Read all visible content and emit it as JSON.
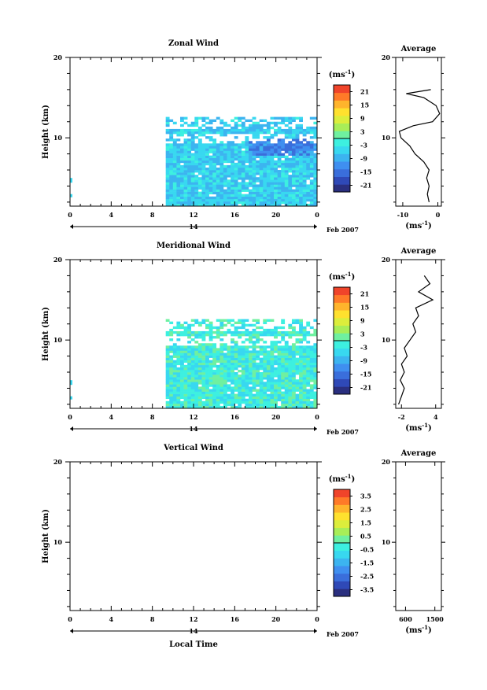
{
  "chart_data": [
    {
      "type": "heatmap",
      "title": "Zonal Wind",
      "ylabel": "Height (km)",
      "ylim": [
        1.5,
        20
      ],
      "y_ticks": [
        "20",
        "10"
      ],
      "x_ticks": [
        "0",
        "4",
        "8",
        "12",
        "16",
        "20",
        "0"
      ],
      "xlim": [
        0,
        24
      ],
      "date_label": "14",
      "date_suffix": "Feb 2007",
      "colorbar": {
        "unit": "(ms⁻¹)",
        "ticks": [
          "21",
          "15",
          "9",
          "3",
          "-3",
          "-9",
          "-15",
          "-21"
        ],
        "range": [
          -24,
          24
        ]
      },
      "data_region": {
        "time_start": 9.3,
        "time_end": 24,
        "height_bottom": 1.5,
        "height_top": 12.5,
        "typical_value": -6,
        "range": [
          -18,
          3
        ]
      },
      "average_panel": {
        "title": "Average",
        "xlabel": "(ms⁻¹)",
        "x_ticks": [
          "-10",
          "0"
        ],
        "xlim": [
          -12,
          1
        ],
        "y_ticks": [
          "20",
          "10"
        ],
        "profile": [
          {
            "h": 2.0,
            "v": -2.5
          },
          {
            "h": 3.0,
            "v": -3.0
          },
          {
            "h": 4.0,
            "v": -2.5
          },
          {
            "h": 5.0,
            "v": -3.2
          },
          {
            "h": 6.0,
            "v": -2.5
          },
          {
            "h": 7.0,
            "v": -4.0
          },
          {
            "h": 8.0,
            "v": -6.5
          },
          {
            "h": 9.0,
            "v": -8.0
          },
          {
            "h": 10.0,
            "v": -10.5
          },
          {
            "h": 10.8,
            "v": -11.0
          },
          {
            "h": 11.5,
            "v": -7.0
          },
          {
            "h": 12.0,
            "v": -1.5
          },
          {
            "h": 13.0,
            "v": 0.5
          },
          {
            "h": 14.0,
            "v": -0.5
          },
          {
            "h": 15.0,
            "v": -4.0
          },
          {
            "h": 15.5,
            "v": -9.0
          },
          {
            "h": 16.0,
            "v": -2.0
          }
        ]
      }
    },
    {
      "type": "heatmap",
      "title": "Meridional Wind",
      "ylabel": "Height (km)",
      "ylim": [
        1.5,
        20
      ],
      "y_ticks": [
        "20",
        "10"
      ],
      "x_ticks": [
        "0",
        "4",
        "8",
        "12",
        "16",
        "20",
        "0"
      ],
      "xlim": [
        0,
        24
      ],
      "date_label": "14",
      "date_suffix": "Feb 2007",
      "colorbar": {
        "unit": "(ms⁻¹)",
        "ticks": [
          "21",
          "15",
          "9",
          "3",
          "-3",
          "-9",
          "-15",
          "-21"
        ],
        "range": [
          -24,
          24
        ]
      },
      "data_region": {
        "time_start": 9.3,
        "time_end": 24,
        "height_bottom": 1.5,
        "height_top": 12.5,
        "typical_value": -2,
        "range": [
          -10,
          3
        ]
      },
      "average_panel": {
        "title": "Average",
        "xlabel": "(ms⁻¹)",
        "x_ticks": [
          "-2",
          "4"
        ],
        "xlim": [
          -3,
          5
        ],
        "y_ticks": [
          "20",
          "10"
        ],
        "profile": [
          {
            "h": 2.0,
            "v": -2.5
          },
          {
            "h": 3.0,
            "v": -2.0
          },
          {
            "h": 4.0,
            "v": -1.5
          },
          {
            "h": 5.0,
            "v": -2.2
          },
          {
            "h": 6.0,
            "v": -1.5
          },
          {
            "h": 7.0,
            "v": -2.0
          },
          {
            "h": 8.0,
            "v": -1.0
          },
          {
            "h": 9.0,
            "v": -1.5
          },
          {
            "h": 10.0,
            "v": -0.5
          },
          {
            "h": 11.0,
            "v": 0.5
          },
          {
            "h": 12.0,
            "v": 0.0
          },
          {
            "h": 13.0,
            "v": 1.0
          },
          {
            "h": 14.0,
            "v": 0.5
          },
          {
            "h": 15.0,
            "v": 3.5
          },
          {
            "h": 16.0,
            "v": 1.0
          },
          {
            "h": 17.0,
            "v": 3.0
          },
          {
            "h": 18.0,
            "v": 2.0
          }
        ]
      }
    },
    {
      "type": "heatmap",
      "title": "Vertical Wind",
      "ylabel": "Height (km)",
      "xlabel": "Local Time",
      "ylim": [
        1.5,
        20
      ],
      "y_ticks": [
        "20",
        "10"
      ],
      "x_ticks": [
        "0",
        "4",
        "8",
        "12",
        "16",
        "20",
        "0"
      ],
      "xlim": [
        0,
        24
      ],
      "date_label": "14",
      "date_suffix": "Feb 2007",
      "colorbar": {
        "unit": "(ms⁻¹)",
        "ticks": [
          "3.5",
          "2.5",
          "1.5",
          "0.5",
          "-0.5",
          "-1.5",
          "-2.5",
          "-3.5"
        ],
        "range": [
          -4,
          4
        ]
      },
      "data_region": null,
      "average_panel": {
        "title": "Average",
        "xlabel": "(ms⁻¹)",
        "x_ticks": [
          "600",
          "1500"
        ],
        "xlim": [
          300,
          1700
        ],
        "y_ticks": [
          "20",
          "10"
        ],
        "profile": []
      }
    }
  ]
}
